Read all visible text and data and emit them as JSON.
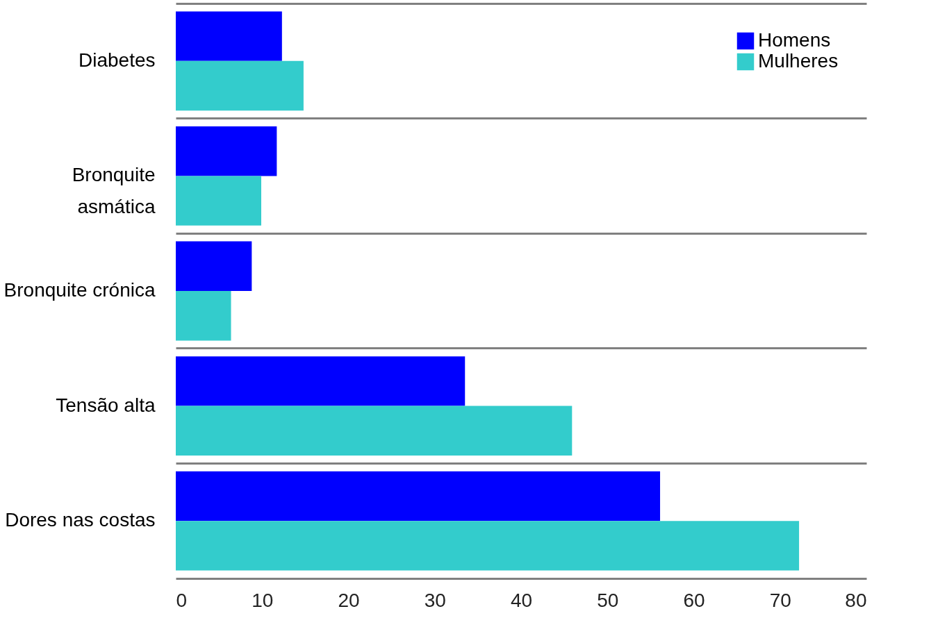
{
  "chart_data": {
    "type": "bar",
    "orientation": "horizontal",
    "categories": [
      "Diabetes",
      "Bronquite\nasmática",
      "Bronquite crónica",
      "Tensão alta",
      "Dores nas costas"
    ],
    "series": [
      {
        "name": "Homens",
        "color": "#0000ff",
        "values": [
          12.3,
          11.7,
          8.8,
          33.5,
          56.1
        ]
      },
      {
        "name": "Mulheres",
        "color": "#33cccc",
        "values": [
          14.8,
          9.9,
          6.4,
          45.9,
          72.2
        ]
      }
    ],
    "xlim": [
      0,
      80
    ],
    "xticks": [
      0,
      10,
      20,
      30,
      40,
      50,
      60,
      70,
      80
    ],
    "grid": "y",
    "legend": "top right"
  }
}
